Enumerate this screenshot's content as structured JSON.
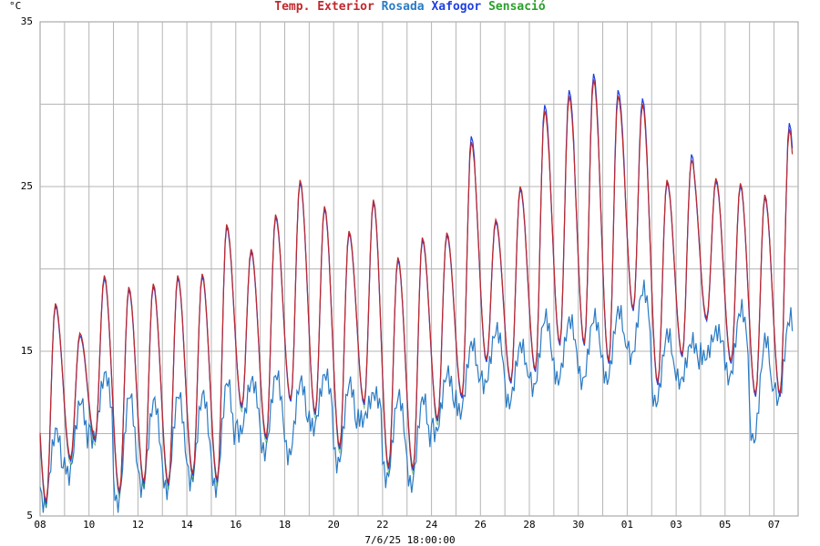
{
  "chart_data": {
    "type": "line",
    "unit": "°C",
    "ylim": [
      5,
      35
    ],
    "y_ticks": [
      "5",
      "15",
      "25",
      "35"
    ],
    "x_ticks": [
      "08",
      "10",
      "12",
      "14",
      "16",
      "18",
      "20",
      "22",
      "24",
      "26",
      "28",
      "30",
      "01",
      "03",
      "05",
      "07"
    ],
    "grid": true,
    "timestamp": "7/6/25 18:00:00",
    "series": [
      {
        "name": "Temp. Exterior",
        "color": "#c0282d"
      },
      {
        "name": "Rosada",
        "color": "#2b7bc4"
      },
      {
        "name": "Xafogor",
        "color": "#1f3fe0"
      },
      {
        "name": "Sensació",
        "color": "#2aa02a"
      }
    ],
    "daily": [
      {
        "max": 17.9,
        "min": 5.9,
        "dew_max": 10.2,
        "dew_min": 5.6
      },
      {
        "max": 16.1,
        "min": 8.5,
        "dew_max": 12.0,
        "dew_min": 7.4
      },
      {
        "max": 19.6,
        "min": 9.7,
        "dew_max": 13.6,
        "dew_min": 9.6
      },
      {
        "max": 18.9,
        "min": 6.5,
        "dew_max": 12.4,
        "dew_min": 5.6
      },
      {
        "max": 19.1,
        "min": 7.1,
        "dew_max": 12.0,
        "dew_min": 6.6
      },
      {
        "max": 19.6,
        "min": 7.0,
        "dew_max": 12.4,
        "dew_min": 6.5
      },
      {
        "max": 19.7,
        "min": 7.6,
        "dew_max": 12.4,
        "dew_min": 7.0
      },
      {
        "max": 22.7,
        "min": 7.2,
        "dew_max": 13.2,
        "dew_min": 6.6
      },
      {
        "max": 21.2,
        "min": 11.7,
        "dew_max": 13.2,
        "dew_min": 10.0
      },
      {
        "max": 23.3,
        "min": 9.8,
        "dew_max": 13.6,
        "dew_min": 8.8
      },
      {
        "max": 25.4,
        "min": 12.1,
        "dew_max": 13.2,
        "dew_min": 8.6
      },
      {
        "max": 23.8,
        "min": 11.3,
        "dew_max": 13.6,
        "dew_min": 10.3
      },
      {
        "max": 22.3,
        "min": 9.2,
        "dew_max": 13.1,
        "dew_min": 8.1
      },
      {
        "max": 24.2,
        "min": 11.9,
        "dew_max": 12.4,
        "dew_min": 10.8
      },
      {
        "max": 20.7,
        "min": 8.0,
        "dew_max": 12.3,
        "dew_min": 7.2
      },
      {
        "max": 21.9,
        "min": 7.9,
        "dew_max": 12.2,
        "dew_min": 6.8
      },
      {
        "max": 22.2,
        "min": 10.9,
        "dew_max": 13.7,
        "dew_min": 10.0
      },
      {
        "max": 27.7,
        "min": 12.3,
        "dew_max": 15.5,
        "dew_min": 11.2
      },
      {
        "max": 23.0,
        "min": 14.5,
        "dew_max": 16.3,
        "dew_min": 12.9
      },
      {
        "max": 25.0,
        "min": 13.2,
        "dew_max": 15.4,
        "dew_min": 11.8
      },
      {
        "max": 29.6,
        "min": 13.9,
        "dew_max": 17.1,
        "dew_min": 12.7
      },
      {
        "max": 30.5,
        "min": 15.5,
        "dew_max": 16.9,
        "dew_min": 13.2
      },
      {
        "max": 31.5,
        "min": 15.5,
        "dew_max": 17.1,
        "dew_min": 13.1
      },
      {
        "max": 30.5,
        "min": 14.4,
        "dew_max": 17.5,
        "dew_min": 13.2
      },
      {
        "max": 30.0,
        "min": 17.6,
        "dew_max": 18.8,
        "dew_min": 14.6
      },
      {
        "max": 25.4,
        "min": 13.1,
        "dew_max": 16.1,
        "dew_min": 11.8
      },
      {
        "max": 26.6,
        "min": 14.8,
        "dew_max": 15.6,
        "dew_min": 13.1
      },
      {
        "max": 25.5,
        "min": 17.0,
        "dew_max": 16.2,
        "dew_min": 14.6
      },
      {
        "max": 25.2,
        "min": 14.4,
        "dew_max": 17.6,
        "dew_min": 13.3
      },
      {
        "max": 24.5,
        "min": 12.4,
        "dew_max": 15.8,
        "dew_min": 9.5
      },
      {
        "max": 28.5,
        "min": 12.4,
        "dew_max": 17.1,
        "dew_min": 12.0
      }
    ]
  },
  "legend": {
    "temp": "Temp. Exterior",
    "dew": "Rosada",
    "heat": "Xafogor",
    "feel": "Sensació"
  },
  "axis": {
    "unit": "°C",
    "y35": "35",
    "y25": "25",
    "y15": "15",
    "y5": "5"
  },
  "footer": {
    "timestamp": "7/6/25 18:00:00"
  }
}
